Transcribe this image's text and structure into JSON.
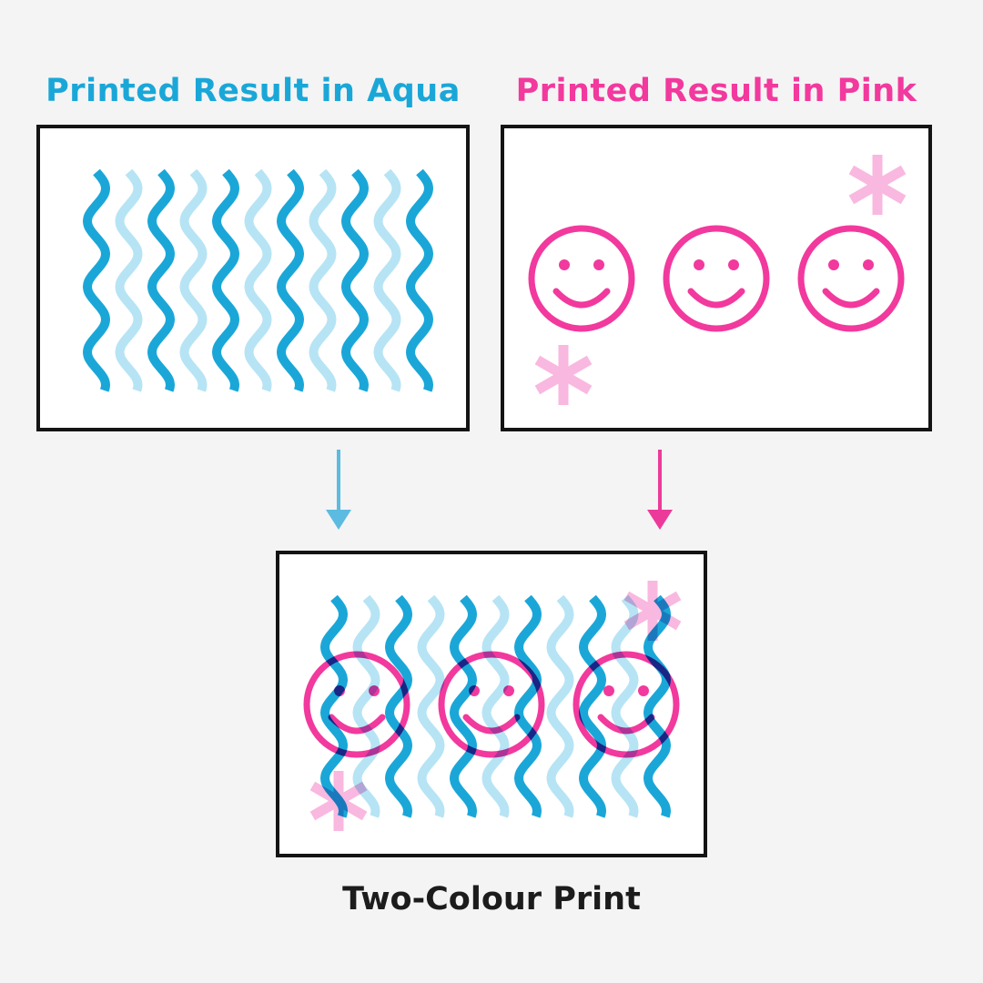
{
  "headings": {
    "aqua": "Printed Result in Aqua",
    "pink": "Printed Result in Pink"
  },
  "caption": "Two-Colour Print",
  "colors": {
    "aqua": "#1aa7d8",
    "aqua_light": "#b6e4f4",
    "pink": "#f2399d",
    "pink_light": "#f9b8df",
    "overlap": "#2d3a9c",
    "arrow_aqua": "#5bbbe0",
    "arrow_pink": "#ec3a9a",
    "text_dark": "#1c1c1c"
  },
  "icons": {
    "pattern": "wavy-lines",
    "faces": "smiley-face",
    "accents": "asterisk"
  }
}
